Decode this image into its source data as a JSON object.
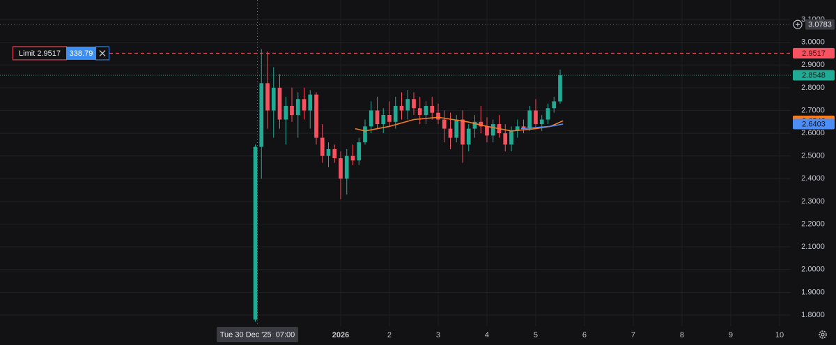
{
  "chart_data": {
    "type": "candlestick",
    "x": [
      -0.75,
      -0.625,
      -0.5,
      -0.375,
      -0.25,
      -0.125,
      0,
      0.125,
      0.25,
      0.375,
      0.5,
      0.625,
      0.75,
      0.875,
      1,
      1.125,
      1.25,
      1.375,
      1.5,
      1.625,
      1.75,
      1.875,
      2,
      2.125,
      2.25,
      2.375,
      2.5,
      2.625,
      2.75,
      2.875,
      3,
      3.125,
      3.25,
      3.375,
      3.5,
      3.625,
      3.75,
      3.875,
      4,
      4.125,
      4.25,
      4.375,
      4.5,
      4.625,
      4.75,
      4.875,
      5,
      5.125,
      5.25,
      5.375,
      5.5
    ],
    "open": [
      1.78,
      2.54,
      2.82,
      2.7,
      2.8,
      2.66,
      2.72,
      2.68,
      2.75,
      2.7,
      2.77,
      2.58,
      2.5,
      2.53,
      2.49,
      2.4,
      2.5,
      2.48,
      2.56,
      2.63,
      2.7,
      2.64,
      2.68,
      2.65,
      2.72,
      2.7,
      2.75,
      2.71,
      2.68,
      2.72,
      2.69,
      2.66,
      2.62,
      2.58,
      2.66,
      2.55,
      2.62,
      2.65,
      2.63,
      2.59,
      2.64,
      2.6,
      2.55,
      2.61,
      2.63,
      2.62,
      2.7,
      2.64,
      2.66,
      2.71,
      2.74
    ],
    "high": [
      2.55,
      2.97,
      2.96,
      2.89,
      2.86,
      2.76,
      2.8,
      2.78,
      2.8,
      2.79,
      2.78,
      2.64,
      2.56,
      2.55,
      2.52,
      2.53,
      2.55,
      2.58,
      2.66,
      2.74,
      2.76,
      2.71,
      2.74,
      2.76,
      2.78,
      2.79,
      2.78,
      2.76,
      2.74,
      2.76,
      2.73,
      2.7,
      2.69,
      2.68,
      2.7,
      2.64,
      2.68,
      2.72,
      2.67,
      2.66,
      2.68,
      2.64,
      2.63,
      2.66,
      2.66,
      2.72,
      2.75,
      2.68,
      2.73,
      2.76,
      2.88
    ],
    "low": [
      1.77,
      2.4,
      2.62,
      2.58,
      2.62,
      2.55,
      2.65,
      2.58,
      2.66,
      2.62,
      2.55,
      2.47,
      2.45,
      2.47,
      2.31,
      2.33,
      2.46,
      2.46,
      2.55,
      2.6,
      2.62,
      2.6,
      2.63,
      2.62,
      2.66,
      2.66,
      2.68,
      2.64,
      2.64,
      2.66,
      2.64,
      2.56,
      2.53,
      2.56,
      2.47,
      2.52,
      2.58,
      2.6,
      2.56,
      2.56,
      2.58,
      2.52,
      2.52,
      2.58,
      2.6,
      2.61,
      2.62,
      2.61,
      2.64,
      2.69,
      2.73
    ],
    "close": [
      2.54,
      2.82,
      2.7,
      2.8,
      2.66,
      2.72,
      2.68,
      2.75,
      2.7,
      2.77,
      2.58,
      2.5,
      2.53,
      2.49,
      2.4,
      2.5,
      2.48,
      2.56,
      2.63,
      2.7,
      2.64,
      2.68,
      2.65,
      2.72,
      2.7,
      2.75,
      2.71,
      2.68,
      2.72,
      2.69,
      2.66,
      2.62,
      2.58,
      2.66,
      2.55,
      2.62,
      2.65,
      2.63,
      2.59,
      2.64,
      2.6,
      2.55,
      2.61,
      2.63,
      2.62,
      2.7,
      2.64,
      2.66,
      2.71,
      2.74,
      2.8548
    ],
    "up_color": "#22ab94",
    "down_color": "#f7525f",
    "indicators": [
      {
        "color": "#f57c20",
        "x": [
          1.3,
          1.5,
          2,
          2.5,
          3,
          3.3,
          3.6,
          4,
          4.5,
          5,
          5.3,
          5.56
        ],
        "values": [
          2.62,
          2.61,
          2.63,
          2.66,
          2.67,
          2.66,
          2.65,
          2.63,
          2.61,
          2.62,
          2.63,
          2.6542
        ]
      },
      {
        "color": "#4c8df6",
        "x": [
          4.7,
          5,
          5.3,
          5.56
        ],
        "values": [
          2.62,
          2.625,
          2.63,
          2.6403
        ]
      }
    ],
    "xlim": [
      -5.986,
      10.229
    ],
    "ylim": [
      1.751,
      3.186
    ],
    "xticks": [
      {
        "value": 1,
        "label": "2026"
      },
      2,
      3,
      4,
      5,
      6,
      7,
      8,
      9,
      10
    ],
    "yticks": [
      {
        "value": 1.8,
        "label": "1.8000"
      },
      {
        "value": 1.9,
        "label": "1.9000"
      },
      {
        "value": 2.0,
        "label": "2.0000"
      },
      {
        "value": 2.1,
        "label": "2.1000"
      },
      {
        "value": 2.2,
        "label": "2.2000"
      },
      {
        "value": 2.3,
        "label": "2.3000"
      },
      {
        "value": 2.4,
        "label": "2.4000"
      },
      {
        "value": 2.5,
        "label": "2.5000"
      },
      {
        "value": 2.6,
        "label": "2.6000"
      },
      {
        "value": 2.7,
        "label": "2.7000"
      },
      {
        "value": 2.8,
        "label": "2.8000"
      },
      {
        "value": 2.9,
        "label": "2.9000"
      },
      {
        "value": 3.0,
        "label": "3.0000"
      },
      {
        "value": 3.1,
        "label": "3.1000"
      }
    ],
    "grid": true,
    "limit_order": {
      "type_label": "Limit",
      "price": 2.9517,
      "quantity": 338.79,
      "color": "#f7525f"
    },
    "crosshair": {
      "x": -0.708,
      "y": 3.0783,
      "date_label": "Tue 30 Dec '25",
      "time_label": "07:00"
    }
  }
}
